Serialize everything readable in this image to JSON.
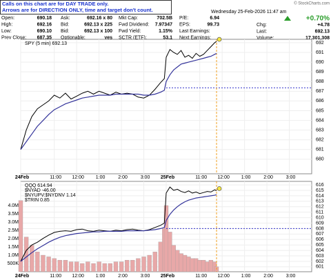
{
  "header": {
    "note": [
      "Calls on this chart are for DAY TRADE only.",
      "Arrows are for DIRECTION ONLY, time and target don't count."
    ],
    "watermark": "© StockCharts.com",
    "rows": [
      [
        "Open:",
        "690.18",
        "Ask:",
        "692.16 x 80",
        "Mkt Cap:",
        "702.5B",
        "P/E:",
        "6.94"
      ],
      [
        "High:",
        "692.16",
        "Bid:",
        "692.13 x 225",
        "Fwd Dividend:",
        "7.97347",
        "EPS:",
        "99.73"
      ],
      [
        "Low:",
        "690.10",
        "Bid:",
        "692.13 x 100",
        "Fwd Yield:",
        "1.15%",
        "Last Earnings:"
      ],
      [
        "Prev Close:",
        "687.35",
        "Optionable:",
        "yes",
        "SCTR (ETF):",
        "53.1",
        "Next Earnings:"
      ]
    ],
    "date": "Wednesday 25-Feb-2026 11:47 am",
    "pct_change": "+0.70%",
    "right_rows": [
      [
        "Chg:",
        "+4.78"
      ],
      [
        "Last:",
        "692.13"
      ],
      [
        "Volume:",
        "17,301,308"
      ]
    ]
  },
  "chart_data": [
    {
      "type": "line",
      "x": [
        0,
        3,
        6,
        9,
        12,
        15,
        18,
        21,
        24,
        27,
        30,
        33,
        36,
        39,
        42,
        45,
        48,
        51,
        54,
        57,
        60,
        63,
        66,
        69,
        72,
        75,
        77,
        78,
        80,
        82,
        84,
        86,
        88,
        90,
        92,
        94,
        96,
        98,
        100,
        102,
        104,
        105
      ],
      "series": [
        {
          "name": "SPY (5 min) 692.13",
          "color": "#000000",
          "values": [
            681.0,
            683.0,
            684.4,
            685.2,
            685.6,
            686.0,
            686.6,
            686.3,
            686.8,
            686.2,
            686.5,
            686.8,
            687.0,
            686.7,
            687.0,
            686.8,
            686.6,
            686.9,
            686.7,
            686.8,
            686.7,
            686.4,
            686.3,
            686.6,
            687.2,
            687.9,
            688.3,
            690.5,
            691.3,
            691.0,
            690.8,
            691.2,
            690.5,
            690.7,
            690.4,
            690.9,
            690.6,
            690.8,
            691.2,
            691.6,
            692.0,
            692.13
          ]
        },
        {
          "color": "#33339a",
          "values": [
            681.0,
            681.8,
            682.6,
            683.4,
            684.0,
            684.6,
            685.1,
            685.4,
            685.7,
            685.9,
            686.1,
            686.3,
            686.4,
            686.5,
            686.6,
            686.6,
            686.6,
            686.7,
            686.7,
            686.7,
            686.7,
            686.7,
            686.6,
            686.6,
            686.7,
            686.9,
            687.1,
            688.0,
            688.7,
            689.2,
            689.5,
            689.8,
            689.9,
            690.0,
            690.1,
            690.2,
            690.3,
            690.4,
            690.5,
            690.6,
            690.8,
            690.9
          ]
        }
      ],
      "hline": {
        "value": 687.35,
        "from": 78,
        "color": "#3333cc"
      },
      "xlim": [
        0,
        156
      ],
      "ylim": [
        678.5,
        692.35
      ],
      "yticks": [
        680,
        681,
        682,
        683,
        684,
        685,
        686,
        687,
        688,
        689,
        690,
        691,
        692
      ],
      "xticks": [
        {
          "value": 0,
          "label": "24Feb"
        },
        {
          "value": 18,
          "label": "11:00"
        },
        {
          "value": 30,
          "label": "12:00"
        },
        {
          "value": 42,
          "label": "1:00"
        },
        {
          "value": 54,
          "label": "2:00"
        },
        {
          "value": 66,
          "label": "3:00"
        },
        {
          "value": 78,
          "label": "25Feb"
        },
        {
          "value": 96,
          "label": "11:00"
        },
        {
          "value": 108,
          "label": "12:00"
        },
        {
          "value": 120,
          "label": "1:00"
        },
        {
          "value": 132,
          "label": "2:00"
        },
        {
          "value": 144,
          "label": "3:00"
        }
      ],
      "grid": true
    },
    {
      "type": "line",
      "x": [
        0,
        3,
        6,
        9,
        12,
        15,
        18,
        21,
        24,
        27,
        30,
        33,
        36,
        39,
        42,
        45,
        48,
        51,
        54,
        57,
        60,
        63,
        66,
        69,
        72,
        75,
        77,
        78,
        80,
        82,
        84,
        86,
        88,
        90,
        92,
        94,
        96,
        98,
        100,
        102,
        104,
        105
      ],
      "series": [
        {
          "type": "bar",
          "axis": "y2",
          "color": "#e8a8a8",
          "values": [
            4.3,
            2.1,
            1.6,
            1.2,
            1.0,
            0.9,
            0.8,
            0.7,
            0.7,
            0.6,
            0.6,
            0.5,
            0.6,
            0.5,
            0.6,
            0.5,
            0.5,
            0.6,
            0.6,
            0.7,
            0.7,
            0.8,
            0.9,
            1.0,
            1.2,
            1.8,
            2.6,
            4.0,
            2.4,
            1.6,
            1.3,
            1.1,
            1.0,
            0.9,
            0.8,
            0.8,
            0.7,
            0.7,
            0.6,
            0.7,
            0.6,
            0.3
          ]
        },
        {
          "name": "QQQ 614.94",
          "color": "#000000",
          "values": [
            602.0,
            604.0,
            605.0,
            605.5,
            606.2,
            606.8,
            607.3,
            607.5,
            607.6,
            607.5,
            607.8,
            607.9,
            607.6,
            607.5,
            607.7,
            607.6,
            607.5,
            607.7,
            607.6,
            607.8,
            607.9,
            607.7,
            607.6,
            607.8,
            608.2,
            608.6,
            609.0,
            614.5,
            615.6,
            615.0,
            615.2,
            614.8,
            614.6,
            614.9,
            614.5,
            614.7,
            614.4,
            614.6,
            614.8,
            614.7,
            615.1,
            614.94
          ]
        },
        {
          "color": "#33339a",
          "values": [
            602.0,
            602.8,
            603.6,
            604.3,
            604.9,
            605.5,
            606.0,
            606.4,
            606.7,
            606.9,
            607.1,
            607.2,
            607.3,
            607.4,
            607.4,
            607.5,
            607.5,
            607.5,
            607.5,
            607.6,
            607.6,
            607.6,
            607.6,
            607.7,
            607.8,
            608.0,
            608.2,
            609.5,
            610.6,
            611.4,
            612.0,
            612.5,
            612.9,
            613.2,
            613.4,
            613.6,
            613.7,
            613.8,
            613.9,
            614.0,
            614.1,
            614.2
          ]
        }
      ],
      "indicators": [
        "$NYAD -46.00",
        "$NYUPV:$NYDNV 1.14",
        "$TRIN 0.85"
      ],
      "hline": {
        "value": 608,
        "from": 78,
        "color": "#3333cc"
      },
      "xlim": [
        0,
        156
      ],
      "ylim": [
        600.1,
        616.64
      ],
      "y2lim": [
        0,
        5.46
      ],
      "yticks": [
        601,
        602,
        603,
        604,
        605,
        606,
        607,
        608,
        609,
        610,
        611,
        612,
        613,
        614,
        615,
        616
      ],
      "y2ticks": [
        {
          "value": 0.5,
          "label": "500K"
        },
        {
          "value": 1,
          "label": "1.0M"
        },
        {
          "value": 1.5,
          "label": "1.5M"
        },
        {
          "value": 2,
          "label": "2.0M"
        },
        {
          "value": 2.5,
          "label": "2.5M"
        },
        {
          "value": 3,
          "label": "3.0M"
        },
        {
          "value": 3.5,
          "label": "3.5M"
        },
        {
          "value": 4,
          "label": "4.0M"
        }
      ],
      "xticks": [
        {
          "value": 0,
          "label": "24Feb"
        },
        {
          "value": 18,
          "label": "11:00"
        },
        {
          "value": 30,
          "label": "12:00"
        },
        {
          "value": 42,
          "label": "1:00"
        },
        {
          "value": 54,
          "label": "2:00"
        },
        {
          "value": 66,
          "label": "3:00"
        },
        {
          "value": 78,
          "label": "25Feb"
        },
        {
          "value": 96,
          "label": "11:00"
        },
        {
          "value": 108,
          "label": "12:00"
        },
        {
          "value": 120,
          "label": "1:00"
        },
        {
          "value": 132,
          "label": "2:00"
        },
        {
          "value": 144,
          "label": "3:00"
        }
      ],
      "grid": true
    }
  ]
}
